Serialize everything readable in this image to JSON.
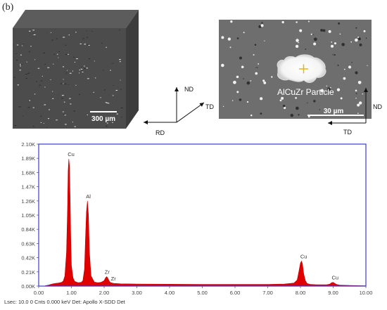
{
  "panel_label": "(b)",
  "micrograph_3d": {
    "scale_bar": "300 µm",
    "axes": {
      "nd": "ND",
      "td": "TD",
      "rd": "RD"
    }
  },
  "micrograph_particle": {
    "particle_label": "AlCuZr Particle",
    "scale_bar": "30 µm",
    "axes": {
      "nd": "ND",
      "td": "TD"
    }
  },
  "colors": {
    "spectrum_fill": "#e00000",
    "frame": "#3a3ad8",
    "tick_text": "#444444"
  },
  "chart_data": {
    "type": "area",
    "title": "",
    "xlabel": "",
    "ylabel": "",
    "x_unit": "keV",
    "xlim": [
      0,
      10
    ],
    "ylim": [
      0,
      2100
    ],
    "x_ticks": [
      "0.00",
      "1.00",
      "2.00",
      "3.00",
      "4.00",
      "5.00",
      "6.00",
      "7.00",
      "8.00",
      "9.00",
      "10.00"
    ],
    "y_ticks": [
      "0.00K",
      "0.21K",
      "0.42K",
      "0.63K",
      "0.84K",
      "1.05K",
      "1.26K",
      "1.47K",
      "1.68K",
      "1.89K",
      "2.10K"
    ],
    "x_tick_values": [
      0,
      1,
      2,
      3,
      4,
      5,
      6,
      7,
      8,
      9,
      10
    ],
    "y_tick_values": [
      0,
      210,
      420,
      630,
      840,
      1050,
      1260,
      1470,
      1680,
      1890,
      2100
    ],
    "series": [
      {
        "x": [
          0.2,
          0.3,
          0.4,
          0.5,
          0.6,
          0.7,
          0.75,
          0.8,
          0.85,
          0.88,
          0.9,
          0.92,
          0.94,
          0.96,
          0.98,
          1.0,
          1.05,
          1.1,
          1.2,
          1.3,
          1.35,
          1.4,
          1.43,
          1.46,
          1.49,
          1.52,
          1.55,
          1.6,
          1.7,
          1.8,
          1.9,
          2.0,
          2.04,
          2.08,
          2.12,
          2.16,
          2.2,
          2.3,
          2.5,
          3.0,
          4.0,
          5.0,
          6.0,
          7.0,
          7.5,
          7.8,
          7.9,
          7.95,
          8.0,
          8.03,
          8.06,
          8.1,
          8.15,
          8.2,
          8.3,
          8.5,
          8.8,
          8.9,
          8.95,
          9.0,
          9.05,
          9.1,
          9.2,
          9.5,
          10.0
        ],
        "y": [
          5,
          15,
          30,
          40,
          45,
          55,
          75,
          150,
          500,
          1100,
          1700,
          1880,
          1780,
          1300,
          700,
          300,
          120,
          70,
          50,
          55,
          80,
          250,
          700,
          1100,
          1260,
          1050,
          500,
          150,
          60,
          50,
          55,
          80,
          120,
          140,
          110,
          70,
          50,
          40,
          35,
          30,
          28,
          25,
          25,
          25,
          30,
          45,
          90,
          210,
          340,
          370,
          330,
          180,
          80,
          40,
          25,
          20,
          20,
          30,
          50,
          55,
          40,
          25,
          15,
          10,
          5
        ]
      }
    ],
    "peak_labels": [
      {
        "text": "Cu",
        "x": 0.93,
        "y": 1880
      },
      {
        "text": "Al",
        "x": 1.49,
        "y": 1260
      },
      {
        "text": "Zr",
        "x": 2.06,
        "y": 140
      },
      {
        "text": "Zr",
        "x": 2.25,
        "y": 40
      },
      {
        "text": "Cu",
        "x": 8.04,
        "y": 370
      },
      {
        "text": "Cu",
        "x": 9.0,
        "y": 55
      }
    ]
  },
  "footer": "Lsec: 10.0 0 Cnts  0.000 keV Det: Apollo X-SDD Det"
}
